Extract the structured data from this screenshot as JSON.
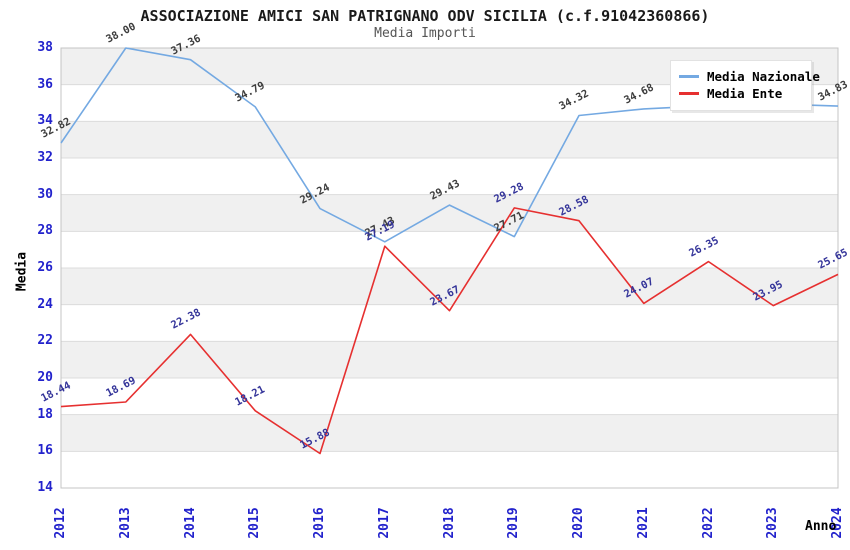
{
  "chart_data": {
    "type": "line",
    "title": "ASSOCIAZIONE AMICI SAN PATRIGNANO ODV SICILIA (c.f.91042360866)",
    "subtitle": "Media Importi",
    "xlabel": "Anno",
    "ylabel": "Media",
    "x": [
      "2012",
      "2013",
      "2014",
      "2015",
      "2016",
      "2017",
      "2018",
      "2019",
      "2020",
      "2021",
      "2022",
      "2023",
      "2024"
    ],
    "ylim": [
      14,
      38
    ],
    "ytick_step": 2,
    "grid": "horizontal-bands",
    "legend_position": "top-right",
    "series": [
      {
        "name": "Media Nazionale",
        "color": "#74A9E2",
        "label_color": "#3C3C3C",
        "values": [
          32.82,
          38.0,
          37.36,
          34.79,
          29.24,
          27.43,
          29.43,
          27.71,
          34.32,
          34.68,
          34.85,
          34.95,
          34.83
        ],
        "point_labels": [
          "32.82",
          "38.00",
          "37.36",
          "34.79",
          "29.24",
          "27.43",
          "29.43",
          "27.71",
          "34.32",
          "34.68",
          "",
          "",
          "34.83"
        ]
      },
      {
        "name": "Media Ente",
        "color": "#E63030",
        "label_color": "#333399",
        "values": [
          18.44,
          18.69,
          22.38,
          18.21,
          15.88,
          27.19,
          23.67,
          29.28,
          28.58,
          24.07,
          26.35,
          23.95,
          25.65
        ],
        "point_labels": [
          "18.44",
          "18.69",
          "22.38",
          "18.21",
          "15.88",
          "27.19",
          "23.67",
          "29.28",
          "28.58",
          "24.07",
          "26.35",
          "23.95",
          "25.65"
        ]
      }
    ]
  },
  "colors": {
    "tick_label": "#2222CC",
    "band_gray": "#F0F0F0",
    "grid_line": "#DCDCDC",
    "plot_border": "#C4C4C4",
    "background": "#FFFFFF"
  }
}
